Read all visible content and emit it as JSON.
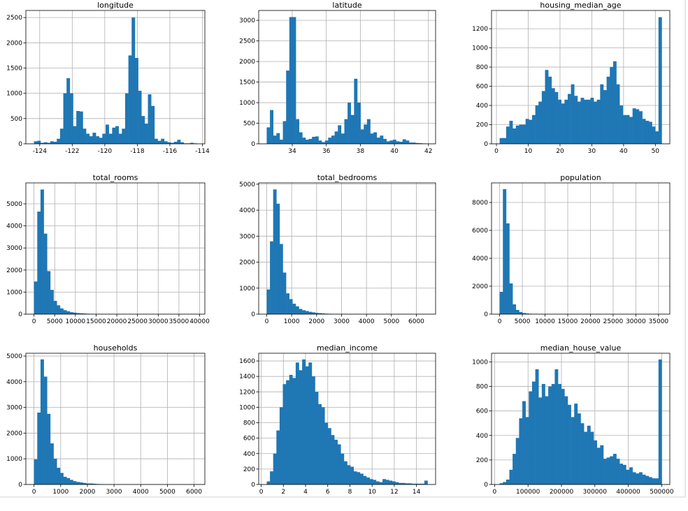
{
  "chart_data": [
    {
      "type": "histogram",
      "title": "longitude",
      "color": "#1f77b4",
      "grid": true,
      "bins": [
        -124.35,
        -124.15,
        -123.95,
        -123.75,
        -123.55,
        -123.35,
        -123.15,
        -122.95,
        -122.75,
        -122.55,
        -122.35,
        -122.15,
        -121.95,
        -121.75,
        -121.55,
        -121.35,
        -121.15,
        -120.95,
        -120.75,
        -120.55,
        -120.35,
        -120.15,
        -119.95,
        -119.75,
        -119.55,
        -119.35,
        -119.15,
        -118.95,
        -118.75,
        -118.55,
        -118.35,
        -118.15,
        -117.95,
        -117.75,
        -117.55,
        -117.35,
        -117.15,
        -116.95,
        -116.75,
        -116.55,
        -116.35,
        -116.15,
        -115.95,
        -115.75,
        -115.55,
        -115.35,
        -115.15,
        -114.95,
        -114.75,
        -114.55,
        -114.35
      ],
      "values": [
        50,
        60,
        20,
        30,
        20,
        50,
        40,
        100,
        300,
        1000,
        1300,
        1000,
        350,
        650,
        640,
        300,
        200,
        150,
        220,
        150,
        120,
        200,
        380,
        200,
        320,
        350,
        200,
        300,
        1000,
        1750,
        2500,
        1700,
        1050,
        550,
        400,
        980,
        750,
        100,
        60,
        100,
        50,
        30,
        20,
        40,
        80,
        30,
        10,
        10,
        20,
        10
      ],
      "xlim": [
        -124.85,
        -113.85
      ],
      "xticks": [
        -124,
        -122,
        -120,
        -118,
        -116,
        -114
      ],
      "ylim": [
        0,
        2640
      ],
      "yticks": [
        0,
        500,
        1000,
        1500,
        2000,
        2500
      ]
    },
    {
      "type": "histogram",
      "title": "latitude",
      "color": "#1f77b4",
      "grid": true,
      "bins": [
        32.5,
        32.69,
        32.88,
        33.07,
        33.26,
        33.45,
        33.64,
        33.83,
        34.02,
        34.21,
        34.4,
        34.59,
        34.78,
        34.97,
        35.16,
        35.35,
        35.54,
        35.73,
        35.92,
        36.11,
        36.3,
        36.49,
        36.68,
        36.87,
        37.06,
        37.25,
        37.44,
        37.63,
        37.82,
        38.01,
        38.2,
        38.39,
        38.58,
        38.77,
        38.96,
        39.15,
        39.34,
        39.53,
        39.72,
        39.91,
        40.1,
        40.29,
        40.48,
        40.67,
        40.86,
        41.05,
        41.24,
        41.43,
        41.62,
        41.81,
        42.0
      ],
      "values": [
        400,
        820,
        200,
        260,
        100,
        550,
        1780,
        3080,
        3080,
        600,
        280,
        150,
        100,
        120,
        170,
        180,
        80,
        40,
        80,
        150,
        200,
        300,
        450,
        250,
        600,
        1000,
        700,
        1580,
        1000,
        350,
        470,
        600,
        250,
        280,
        150,
        200,
        120,
        60,
        80,
        100,
        60,
        50,
        110,
        80,
        30,
        30,
        20,
        15,
        10,
        5
      ],
      "xlim": [
        32.03,
        42.42
      ],
      "xticks": [
        34,
        36,
        38,
        40,
        42
      ],
      "ylim": [
        0,
        3240
      ],
      "yticks": [
        0,
        500,
        1000,
        1500,
        2000,
        2500,
        3000
      ]
    },
    {
      "type": "histogram",
      "title": "housing_median_age",
      "color": "#1f77b4",
      "grid": true,
      "bins": [
        1,
        2.02,
        3.04,
        4.06,
        5.08,
        6.1,
        7.12,
        8.14,
        9.16,
        10.18,
        11.2,
        12.22,
        13.24,
        14.26,
        15.28,
        16.3,
        17.32,
        18.34,
        19.36,
        20.38,
        21.4,
        22.42,
        23.44,
        24.46,
        25.48,
        26.5,
        27.52,
        28.54,
        29.56,
        30.58,
        31.6,
        32.62,
        33.64,
        34.66,
        35.68,
        36.7,
        37.72,
        38.74,
        39.76,
        40.78,
        41.8,
        42.82,
        43.84,
        44.86,
        45.88,
        46.9,
        47.92,
        48.94,
        49.96,
        50.98,
        52
      ],
      "values": [
        60,
        60,
        180,
        240,
        160,
        190,
        200,
        200,
        260,
        250,
        300,
        400,
        440,
        550,
        770,
        700,
        580,
        540,
        460,
        420,
        460,
        520,
        620,
        500,
        440,
        480,
        460,
        460,
        480,
        440,
        460,
        620,
        560,
        700,
        800,
        860,
        620,
        400,
        300,
        300,
        280,
        370,
        360,
        340,
        260,
        240,
        230,
        180,
        130,
        1320
      ],
      "xlim": [
        -1.55,
        54.55
      ],
      "xticks": [
        0,
        10,
        20,
        30,
        40,
        50
      ],
      "ylim": [
        0,
        1390
      ],
      "yticks": [
        0,
        200,
        400,
        600,
        800,
        1000,
        1200
      ]
    },
    {
      "type": "histogram",
      "title": "total_rooms",
      "color": "#1f77b4",
      "grid": true,
      "bins": [
        0,
        786,
        1572,
        2358,
        3144,
        3930,
        4716,
        5502,
        6288,
        7074,
        7860,
        8646,
        9432,
        10218,
        11004,
        11790,
        12576,
        13362,
        14148,
        14934,
        15720,
        16506,
        17292,
        18078,
        18864,
        19650,
        20436,
        21222,
        22008,
        22794,
        23580,
        24366,
        25152,
        25938,
        26724,
        27510,
        28296,
        29082,
        29868,
        30654,
        31440,
        32226,
        33012,
        33798,
        34584,
        35370,
        36156,
        36942,
        37728,
        38514,
        39300
      ],
      "values": [
        1480,
        4650,
        5650,
        3650,
        1950,
        1100,
        600,
        400,
        260,
        180,
        130,
        90,
        70,
        50,
        40,
        30,
        20,
        15,
        12,
        10,
        8,
        6,
        5,
        4,
        3,
        3,
        2,
        2,
        2,
        1,
        1,
        1,
        1,
        1,
        0,
        0,
        1,
        0,
        0,
        0,
        0,
        0,
        0,
        0,
        0,
        0,
        0,
        0,
        0,
        1
      ],
      "xlim": [
        -1965,
        41265
      ],
      "xticks": [
        0,
        5000,
        10000,
        15000,
        20000,
        25000,
        30000,
        35000,
        40000
      ],
      "ylim": [
        0,
        5950
      ],
      "yticks": [
        0,
        1000,
        2000,
        3000,
        4000,
        5000
      ]
    },
    {
      "type": "histogram",
      "title": "total_bedrooms",
      "color": "#1f77b4",
      "grid": true,
      "bins": [
        0,
        129,
        258,
        387,
        516,
        645,
        774,
        903,
        1032,
        1161,
        1290,
        1419,
        1548,
        1677,
        1806,
        1935,
        2064,
        2193,
        2322,
        2451,
        2580,
        2709,
        2838,
        2967,
        3096,
        3225,
        3354,
        3483,
        3612,
        3741,
        3870,
        3999,
        4128,
        4257,
        4386,
        4515,
        4644,
        4773,
        4902,
        5031,
        5160,
        5289,
        5418,
        5547,
        5676,
        5805,
        5934,
        6063,
        6192,
        6321,
        6450
      ],
      "values": [
        950,
        2800,
        4800,
        4250,
        2700,
        1600,
        800,
        580,
        400,
        300,
        200,
        150,
        120,
        90,
        70,
        50,
        40,
        30,
        20,
        15,
        12,
        10,
        8,
        6,
        5,
        4,
        3,
        3,
        2,
        2,
        2,
        1,
        1,
        1,
        1,
        0,
        0,
        1,
        0,
        0,
        0,
        0,
        0,
        0,
        0,
        0,
        0,
        0,
        0,
        1
      ],
      "xlim": [
        -322,
        6772
      ],
      "xticks": [
        0,
        1000,
        2000,
        3000,
        4000,
        5000,
        6000
      ],
      "ylim": [
        0,
        5050
      ],
      "yticks": [
        0,
        1000,
        2000,
        3000,
        4000,
        5000
      ]
    },
    {
      "type": "histogram",
      "title": "population",
      "color": "#1f77b4",
      "grid": true,
      "bins": [
        0,
        714,
        1428,
        2142,
        2856,
        3570,
        4284,
        4998,
        5712,
        6426,
        7140,
        7854,
        8568,
        9282,
        9996,
        10710,
        11424,
        12138,
        12852,
        13566,
        14280,
        14994,
        15708,
        16422,
        17136,
        17850,
        18564,
        19278,
        19992,
        20706,
        21420,
        22134,
        22848,
        23562,
        24276,
        24990,
        25704,
        26418,
        27132,
        27846,
        28560,
        29274,
        29988,
        30702,
        31416,
        32130,
        32844,
        33558,
        34272,
        34986,
        35700
      ],
      "values": [
        1600,
        8950,
        6500,
        2200,
        700,
        300,
        150,
        80,
        50,
        30,
        20,
        15,
        10,
        8,
        6,
        5,
        4,
        3,
        2,
        2,
        1,
        1,
        1,
        1,
        0,
        0,
        0,
        0,
        0,
        0,
        0,
        0,
        0,
        0,
        0,
        0,
        0,
        0,
        0,
        0,
        0,
        0,
        0,
        0,
        0,
        0,
        0,
        0,
        0,
        1
      ],
      "xlim": [
        -1785,
        37485
      ],
      "xticks": [
        0,
        5000,
        10000,
        15000,
        20000,
        25000,
        30000,
        35000
      ],
      "ylim": [
        0,
        9400
      ],
      "yticks": [
        0,
        2000,
        4000,
        6000,
        8000
      ]
    },
    {
      "type": "histogram",
      "title": "households",
      "color": "#1f77b4",
      "grid": true,
      "bins": [
        0,
        122,
        244,
        366,
        488,
        610,
        732,
        854,
        976,
        1098,
        1220,
        1342,
        1464,
        1586,
        1708,
        1830,
        1952,
        2074,
        2196,
        2318,
        2440,
        2562,
        2684,
        2806,
        2928,
        3050,
        3172,
        3294,
        3416,
        3538,
        3660,
        3782,
        3904,
        4026,
        4148,
        4270,
        4392,
        4514,
        4636,
        4758,
        4880,
        5002,
        5124,
        5246,
        5368,
        5490,
        5612,
        5734,
        5856,
        5978,
        6100
      ],
      "values": [
        980,
        2800,
        4870,
        4200,
        2750,
        1600,
        1000,
        650,
        450,
        300,
        250,
        180,
        130,
        100,
        80,
        60,
        40,
        40,
        30,
        20,
        15,
        12,
        10,
        8,
        6,
        5,
        4,
        3,
        3,
        2,
        2,
        1,
        1,
        1,
        1,
        0,
        0,
        1,
        0,
        0,
        0,
        0,
        0,
        0,
        0,
        0,
        0,
        0,
        0,
        1
      ],
      "xlim": [
        -305,
        6405
      ],
      "xticks": [
        0,
        1000,
        2000,
        3000,
        4000,
        5000,
        6000
      ],
      "ylim": [
        0,
        5110
      ],
      "yticks": [
        0,
        1000,
        2000,
        3000,
        4000,
        5000
      ]
    },
    {
      "type": "histogram",
      "title": "median_income",
      "color": "#1f77b4",
      "grid": true,
      "bins": [
        0.5,
        0.79,
        1.08,
        1.37,
        1.66,
        1.95,
        2.24,
        2.53,
        2.82,
        3.11,
        3.4,
        3.69,
        3.98,
        4.27,
        4.56,
        4.85,
        5.14,
        5.43,
        5.72,
        6.01,
        6.3,
        6.59,
        6.88,
        7.17,
        7.46,
        7.75,
        8.04,
        8.33,
        8.62,
        8.91,
        9.2,
        9.49,
        9.78,
        10.07,
        10.36,
        10.65,
        10.94,
        11.23,
        11.52,
        11.81,
        12.1,
        12.39,
        12.68,
        12.97,
        13.26,
        13.55,
        13.84,
        14.13,
        14.42,
        14.71,
        15.0
      ],
      "values": [
        40,
        170,
        400,
        700,
        1000,
        1300,
        1350,
        1420,
        1380,
        1580,
        1480,
        1620,
        1530,
        1580,
        1400,
        1200,
        1040,
        1000,
        800,
        730,
        640,
        580,
        520,
        400,
        300,
        250,
        230,
        170,
        160,
        140,
        110,
        90,
        70,
        60,
        40,
        30,
        70,
        60,
        50,
        40,
        30,
        20,
        20,
        15,
        15,
        10,
        10,
        10,
        10,
        50
      ],
      "xlim": [
        -0.225,
        15.725
      ],
      "xticks": [
        0,
        2,
        4,
        6,
        8,
        10,
        12,
        14
      ],
      "ylim": [
        0,
        1700
      ],
      "yticks": [
        0,
        200,
        400,
        600,
        800,
        1000,
        1200,
        1400,
        1600
      ]
    },
    {
      "type": "histogram",
      "title": "median_house_value",
      "color": "#1f77b4",
      "grid": true,
      "bins": [
        15000,
        24700,
        34400,
        44100,
        53800,
        63500,
        73200,
        82900,
        92600,
        102300,
        112000,
        121700,
        131400,
        141100,
        150800,
        160500,
        170200,
        179900,
        189600,
        199300,
        209000,
        218700,
        228400,
        238100,
        247800,
        257500,
        267200,
        276900,
        286600,
        296300,
        306000,
        315700,
        325400,
        335100,
        344800,
        354500,
        364200,
        373900,
        383600,
        393300,
        403000,
        412700,
        422400,
        432100,
        441800,
        451500,
        461200,
        470900,
        480600,
        490300,
        500000
      ],
      "values": [
        10,
        20,
        40,
        120,
        250,
        380,
        540,
        680,
        550,
        760,
        840,
        940,
        710,
        820,
        720,
        800,
        820,
        940,
        820,
        780,
        720,
        650,
        550,
        660,
        580,
        500,
        430,
        480,
        430,
        360,
        300,
        320,
        210,
        220,
        230,
        250,
        210,
        170,
        160,
        120,
        140,
        100,
        90,
        100,
        80,
        70,
        60,
        50,
        50,
        1020
      ],
      "xlim": [
        -9250,
        524250
      ],
      "xticks": [
        0,
        100000,
        200000,
        300000,
        400000,
        500000
      ],
      "ylim": [
        0,
        1071
      ],
      "yticks": [
        0,
        200,
        400,
        600,
        800,
        1000
      ]
    }
  ]
}
